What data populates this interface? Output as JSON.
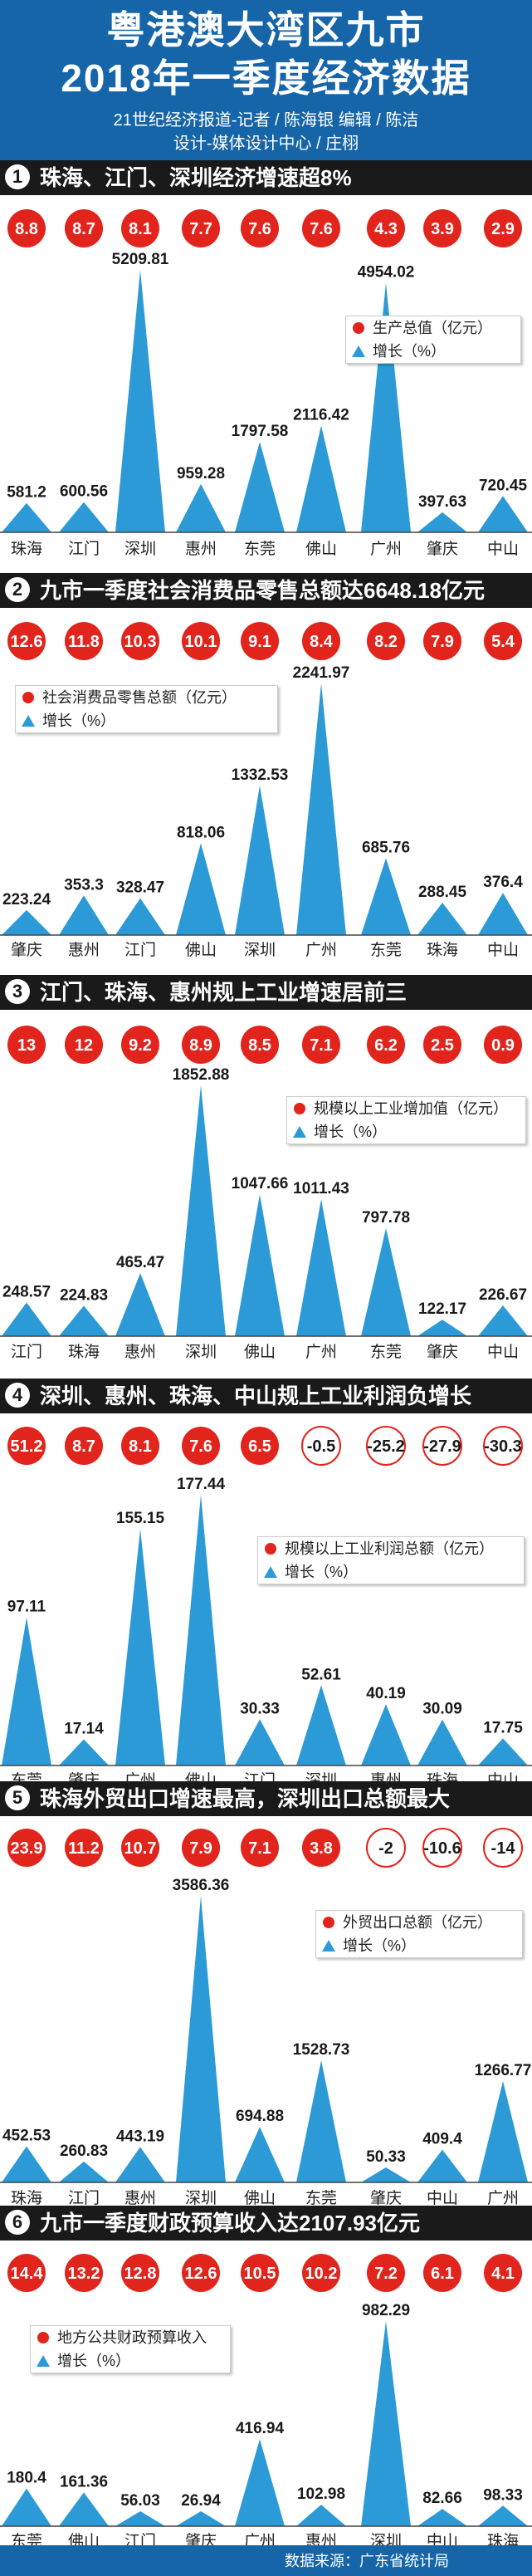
{
  "header": {
    "title_line1": "粤港澳大湾区九市",
    "title_line2": "2018年一季度经济数据",
    "credit_line1": "21世纪经济报道-记者 / 陈海银  编辑 / 陈洁",
    "credit_line2": "设计-媒体设计中心 / 庄栩"
  },
  "sections": [
    {
      "number": "1",
      "title": "珠海、江门、深圳经济增速超8%"
    },
    {
      "number": "2",
      "title": "九市一季度社会消费品零售总额达6648.18亿元"
    },
    {
      "number": "3",
      "title": "江门、珠海、惠州规上工业增速居前三"
    },
    {
      "number": "4",
      "title": "深圳、惠州、珠海、中山规上工业利润负增长"
    },
    {
      "number": "5",
      "title": "珠海外贸出口增速最高，深圳出口总额最大"
    },
    {
      "number": "6",
      "title": "九市一季度财政预算收入达2107.93亿元"
    }
  ],
  "footer": {
    "source": "数据来源：广东省统计局"
  },
  "colors": {
    "header_blue": "#1565a8",
    "bar_dark": "#1a1a1a",
    "growth_red": "#e1241c",
    "triangle_blue": "#2b9ad6"
  },
  "chart_data": [
    {
      "type": "bar",
      "categories": [
        "珠海",
        "江门",
        "深圳",
        "惠州",
        "东莞",
        "佛山",
        "广州",
        "肇庆",
        "中山"
      ],
      "series": [
        {
          "name": "生产总值（亿元）",
          "values": [
            581.2,
            600.56,
            5209.81,
            959.28,
            1797.58,
            2116.42,
            4954.02,
            397.63,
            720.45
          ]
        },
        {
          "name": "增长（%）",
          "values": [
            8.8,
            8.7,
            8.1,
            7.7,
            7.6,
            7.6,
            4.3,
            3.9,
            2.9
          ]
        }
      ],
      "legend": [
        "生产总值（亿元）",
        "增长（%）"
      ],
      "legend_position": "right"
    },
    {
      "type": "bar",
      "categories": [
        "肇庆",
        "惠州",
        "江门",
        "佛山",
        "深圳",
        "广州",
        "东莞",
        "珠海",
        "中山"
      ],
      "series": [
        {
          "name": "社会消费品零售总额（亿元）",
          "values": [
            223.24,
            353.3,
            328.47,
            818.06,
            1332.53,
            2241.97,
            685.76,
            288.45,
            376.4
          ]
        },
        {
          "name": "增长（%）",
          "values": [
            12.6,
            11.8,
            10.3,
            10.1,
            9.1,
            8.4,
            8.2,
            7.9,
            5.4
          ]
        }
      ],
      "legend": [
        "社会消费品零售总额（亿元）",
        "增长（%）"
      ],
      "legend_position": "top-left"
    },
    {
      "type": "bar",
      "categories": [
        "江门",
        "珠海",
        "惠州",
        "深圳",
        "佛山",
        "广州",
        "东莞",
        "肇庆",
        "中山"
      ],
      "series": [
        {
          "name": "规模以上工业增加值（亿元）",
          "values": [
            248.57,
            224.83,
            465.47,
            1852.88,
            1047.66,
            1011.43,
            797.78,
            122.17,
            226.67
          ]
        },
        {
          "name": "增长（%）",
          "values": [
            13,
            12,
            9.2,
            8.9,
            8.5,
            7.1,
            6.2,
            2.5,
            0.9
          ]
        }
      ],
      "legend": [
        "规模以上工业增加值（亿元）",
        "增长（%）"
      ],
      "legend_position": "top-right"
    },
    {
      "type": "bar",
      "categories": [
        "东莞",
        "肇庆",
        "广州",
        "佛山",
        "江门",
        "深圳",
        "惠州",
        "珠海",
        "中山"
      ],
      "series": [
        {
          "name": "规模以上工业利润总额（亿元）",
          "values": [
            97.11,
            17.14,
            155.15,
            177.44,
            30.33,
            52.61,
            40.19,
            30.09,
            17.75
          ]
        },
        {
          "name": "增长（%）",
          "values": [
            51.2,
            8.7,
            8.1,
            7.6,
            6.5,
            -0.5,
            -25.2,
            -27.9,
            -30.3
          ]
        }
      ],
      "legend": [
        "规模以上工业利润总额（亿元）",
        "增长（%）"
      ],
      "legend_position": "right"
    },
    {
      "type": "bar",
      "categories": [
        "珠海",
        "江门",
        "惠州",
        "深圳",
        "佛山",
        "东莞",
        "肇庆",
        "中山",
        "广州"
      ],
      "series": [
        {
          "name": "外贸出口总额（亿元）",
          "values": [
            452.53,
            260.83,
            443.19,
            3586.36,
            694.88,
            1528.73,
            50.33,
            409.4,
            1266.77
          ]
        },
        {
          "name": "增长（%）",
          "values": [
            23.9,
            11.2,
            10.7,
            7.9,
            7.1,
            3.8,
            -2,
            -10.6,
            -14
          ]
        }
      ],
      "legend": [
        "外贸出口总额（亿元）",
        "增长（%）"
      ],
      "legend_position": "top-right"
    },
    {
      "type": "bar",
      "categories": [
        "东莞",
        "佛山",
        "江门",
        "肇庆",
        "广州",
        "惠州",
        "深圳",
        "中山",
        "珠海"
      ],
      "series": [
        {
          "name": "地方公共财政预算收入",
          "values": [
            180.4,
            161.36,
            56.03,
            26.94,
            416.94,
            102.98,
            982.29,
            82.66,
            98.33
          ]
        },
        {
          "name": "增长（%）",
          "values": [
            14.4,
            13.2,
            12.8,
            12.6,
            10.5,
            10.2,
            7.2,
            6.1,
            4.1
          ]
        }
      ],
      "legend": [
        "地方公共财政预算收入",
        "增长（%）"
      ],
      "legend_position": "top-left"
    }
  ]
}
